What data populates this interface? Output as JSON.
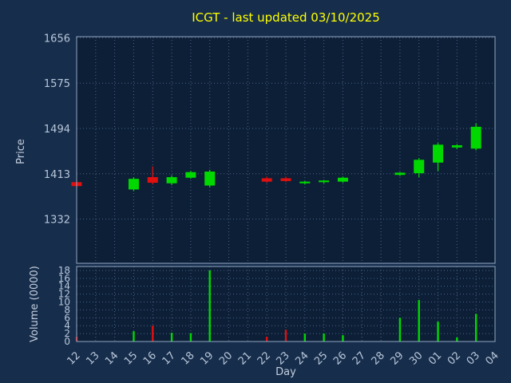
{
  "title": "ICGT - last updated 03/10/2025",
  "axes": {
    "price_label": "Price",
    "volume_label": "Volume (0000)",
    "x_label": "Day"
  },
  "colors": {
    "up": "#00d800",
    "down": "#e01010",
    "title": "#ffff00",
    "grid": "#4a648c",
    "border": "#91a7c4",
    "tick_text": "#b9c6d9",
    "label_text": "#c5cede",
    "panel_bg": "#0c1f36",
    "page_bg": "#162e4c"
  },
  "chart_data": {
    "type": "candlestick",
    "title": "ICGT - last updated 03/10/2025",
    "xlabel": "Day",
    "ylabel_price": "Price",
    "ylabel_volume": "Volume (0000)",
    "x_categories": [
      "12",
      "13",
      "14",
      "15",
      "16",
      "17",
      "18",
      "19",
      "20",
      "21",
      "22",
      "23",
      "24",
      "25",
      "26",
      "27",
      "28",
      "29",
      "30",
      "01",
      "02",
      "03",
      "04"
    ],
    "price_axis": {
      "min": 1253,
      "max": 1658,
      "ticks": [
        1332,
        1413,
        1494,
        1575,
        1656
      ]
    },
    "volume_axis": {
      "min": 0,
      "max": 19,
      "ticks": [
        0,
        2,
        4,
        6,
        8,
        10,
        12,
        14,
        16,
        18
      ]
    },
    "candles": [
      {
        "day": "12",
        "open": 1398,
        "high": 1401,
        "low": 1388,
        "close": 1391,
        "volume": 1.2
      },
      {
        "day": "15",
        "open": 1385,
        "high": 1407,
        "low": 1382,
        "close": 1404,
        "volume": 2.6
      },
      {
        "day": "16",
        "open": 1407,
        "high": 1426,
        "low": 1394,
        "close": 1397,
        "volume": 4.0
      },
      {
        "day": "17",
        "open": 1396,
        "high": 1410,
        "low": 1393,
        "close": 1407,
        "volume": 2.2
      },
      {
        "day": "18",
        "open": 1406,
        "high": 1418,
        "low": 1404,
        "close": 1416,
        "volume": 2.1
      },
      {
        "day": "19",
        "open": 1392,
        "high": 1420,
        "low": 1389,
        "close": 1417,
        "volume": 18.0
      },
      {
        "day": "22",
        "open": 1405,
        "high": 1408,
        "low": 1397,
        "close": 1399,
        "volume": 1.2
      },
      {
        "day": "23",
        "open": 1405,
        "high": 1408,
        "low": 1398,
        "close": 1400,
        "volume": 3.0
      },
      {
        "day": "24",
        "open": 1396,
        "high": 1400,
        "low": 1394,
        "close": 1399,
        "volume": 2.0
      },
      {
        "day": "25",
        "open": 1398,
        "high": 1402,
        "low": 1396,
        "close": 1401,
        "volume": 2.0
      },
      {
        "day": "26",
        "open": 1399,
        "high": 1408,
        "low": 1397,
        "close": 1406,
        "volume": 1.6
      },
      {
        "day": "29",
        "open": 1411,
        "high": 1416,
        "low": 1409,
        "close": 1415,
        "volume": 6.0
      },
      {
        "day": "30",
        "open": 1414,
        "high": 1441,
        "low": 1407,
        "close": 1438,
        "volume": 10.5
      },
      {
        "day": "01",
        "open": 1433,
        "high": 1468,
        "low": 1418,
        "close": 1465,
        "volume": 5.0
      },
      {
        "day": "02",
        "open": 1460,
        "high": 1466,
        "low": 1457,
        "close": 1464,
        "volume": 1.0
      },
      {
        "day": "03",
        "open": 1458,
        "high": 1503,
        "low": 1455,
        "close": 1497,
        "volume": 7.0
      }
    ]
  }
}
